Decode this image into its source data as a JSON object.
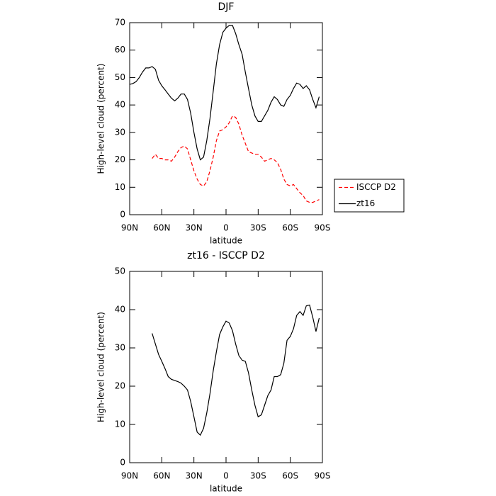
{
  "chart_data": [
    {
      "type": "line",
      "title": "DJF",
      "xlabel": "latitude",
      "ylabel": "High-level cloud (percent)",
      "x": [
        90,
        87,
        84,
        81,
        78,
        75,
        72,
        69,
        66,
        63,
        60,
        57,
        54,
        51,
        48,
        45,
        42,
        39,
        36,
        33,
        30,
        27,
        24,
        21,
        18,
        15,
        12,
        9,
        6,
        3,
        0,
        -3,
        -6,
        -9,
        -12,
        -15,
        -18,
        -21,
        -24,
        -27,
        -30,
        -33,
        -36,
        -39,
        -42,
        -45,
        -48,
        -51,
        -54,
        -57,
        -60,
        -63,
        -66,
        -69,
        -72,
        -75,
        -78,
        -81,
        -84,
        -87
      ],
      "series": [
        {
          "name": "ISCCP D2",
          "color": "#ff0000",
          "dash": "dashed",
          "values": [
            null,
            null,
            null,
            null,
            null,
            null,
            null,
            20.5,
            22,
            20.5,
            20.5,
            20,
            20,
            19.5,
            21,
            23,
            24.5,
            25,
            24,
            20,
            16,
            13,
            11,
            10.5,
            12,
            16,
            21,
            27,
            30.5,
            31,
            32,
            33.5,
            36,
            35.5,
            33,
            29,
            26,
            23,
            22.5,
            22,
            22,
            21,
            19.5,
            20,
            20.5,
            20,
            19,
            16.5,
            13,
            11,
            10.5,
            11,
            9.5,
            8,
            7,
            5,
            4.5,
            4.5,
            5,
            5.5
          ]
        },
        {
          "name": "zt16",
          "color": "#000000",
          "dash": "solid",
          "values": [
            47.5,
            47.8,
            48.5,
            50,
            52,
            53.5,
            53.5,
            54,
            53,
            49,
            47,
            45.5,
            44,
            42.5,
            41.5,
            42.5,
            44,
            44,
            42,
            37,
            30,
            24,
            20,
            21,
            27,
            35,
            45,
            55,
            62,
            66.5,
            68,
            69,
            69,
            66,
            62,
            58.5,
            52,
            46,
            40,
            36,
            34,
            34,
            36,
            38,
            41,
            43,
            42,
            40,
            39.5,
            42,
            43.5,
            46,
            48,
            47.5,
            46,
            47,
            45.5,
            42,
            39,
            43
          ]
        }
      ],
      "xlim": [
        90,
        -90
      ],
      "xticks": [
        {
          "value": 90,
          "label": "90N"
        },
        {
          "value": 60,
          "label": "60N"
        },
        {
          "value": 30,
          "label": "30N"
        },
        0,
        {
          "value": -30,
          "label": "30S"
        },
        {
          "value": -60,
          "label": "60S"
        },
        {
          "value": -90,
          "label": "90S"
        }
      ],
      "ylim": [
        0,
        70
      ],
      "yticks": [
        0,
        10,
        20,
        30,
        40,
        50,
        60,
        70
      ],
      "legend": "right"
    },
    {
      "type": "line",
      "title": "zt16 - ISCCP D2",
      "xlabel": "latitude",
      "ylabel": "High-level cloud (percent)",
      "x": [
        90,
        87,
        84,
        81,
        78,
        75,
        72,
        69,
        66,
        63,
        60,
        57,
        54,
        51,
        48,
        45,
        42,
        39,
        36,
        33,
        30,
        27,
        24,
        21,
        18,
        15,
        12,
        9,
        6,
        3,
        0,
        -3,
        -6,
        -9,
        -12,
        -15,
        -18,
        -21,
        -24,
        -27,
        -30,
        -33,
        -36,
        -39,
        -42,
        -45,
        -48,
        -51,
        -54,
        -57,
        -60,
        -63,
        -66,
        -69,
        -72,
        -75,
        -78,
        -81,
        -84,
        -87
      ],
      "series": [
        {
          "color": "#000000",
          "dash": "solid",
          "values": [
            null,
            null,
            null,
            null,
            null,
            null,
            null,
            33.8,
            31,
            28.3,
            26.5,
            24.6,
            22.5,
            21.8,
            21.5,
            21.2,
            20.8,
            20,
            19,
            16,
            12,
            8,
            7.2,
            9,
            13,
            18,
            24,
            29,
            33.5,
            35.5,
            37,
            36.5,
            34.5,
            31,
            28,
            26.8,
            26.5,
            23.5,
            19,
            15,
            12,
            12.5,
            15,
            17.5,
            19,
            22.5,
            22.5,
            23,
            26,
            32,
            33,
            35,
            38.5,
            39.5,
            38.5,
            41,
            41.2,
            38,
            34.3,
            37.8
          ]
        }
      ],
      "xlim": [
        90,
        -90
      ],
      "xticks": [
        {
          "value": 90,
          "label": "90N"
        },
        {
          "value": 60,
          "label": "60N"
        },
        {
          "value": 30,
          "label": "30N"
        },
        0,
        {
          "value": -30,
          "label": "30S"
        },
        {
          "value": -60,
          "label": "60S"
        },
        {
          "value": -90,
          "label": "90S"
        }
      ],
      "ylim": [
        0,
        50
      ],
      "yticks": [
        0,
        10,
        20,
        30,
        40,
        50
      ]
    }
  ]
}
